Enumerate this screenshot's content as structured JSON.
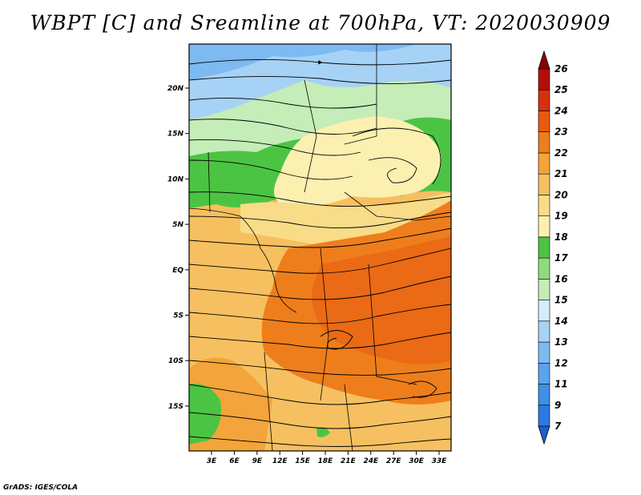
{
  "title": "WBPT [C] and Sreamline at 700hPa, VT: 2020030909",
  "footer": "GrADS: IGES/COLA",
  "map": {
    "lat_labels": [
      "20N",
      "15N",
      "10N",
      "5N",
      "EQ",
      "5S",
      "10S",
      "15S"
    ],
    "lon_labels": [
      "3E",
      "6E",
      "9E",
      "12E",
      "15E",
      "18E",
      "21E",
      "24E",
      "27E",
      "30E",
      "33E"
    ],
    "lat_range": [
      -20,
      24
    ],
    "lon_range": [
      0,
      35
    ]
  },
  "colorbar": {
    "levels": [
      "7",
      "9",
      "11",
      "12",
      "13",
      "14",
      "15",
      "16",
      "17",
      "18",
      "19",
      "20",
      "21",
      "22",
      "23",
      "24",
      "25",
      "26"
    ],
    "colors": [
      "#1e5fd0",
      "#2b7ae0",
      "#3d8fe8",
      "#5aa4ee",
      "#7dbaf2",
      "#a6d2f6",
      "#d5edf8",
      "#c4edb8",
      "#8fdc7c",
      "#4cc443",
      "#fbf0b0",
      "#f8dc88",
      "#f6c060",
      "#f3a43a",
      "#ee7e1c",
      "#e85a10",
      "#d8300c",
      "#b80c08",
      "#8c0005"
    ]
  },
  "colors": {
    "frame": "#000000",
    "streamline": "#000000"
  }
}
